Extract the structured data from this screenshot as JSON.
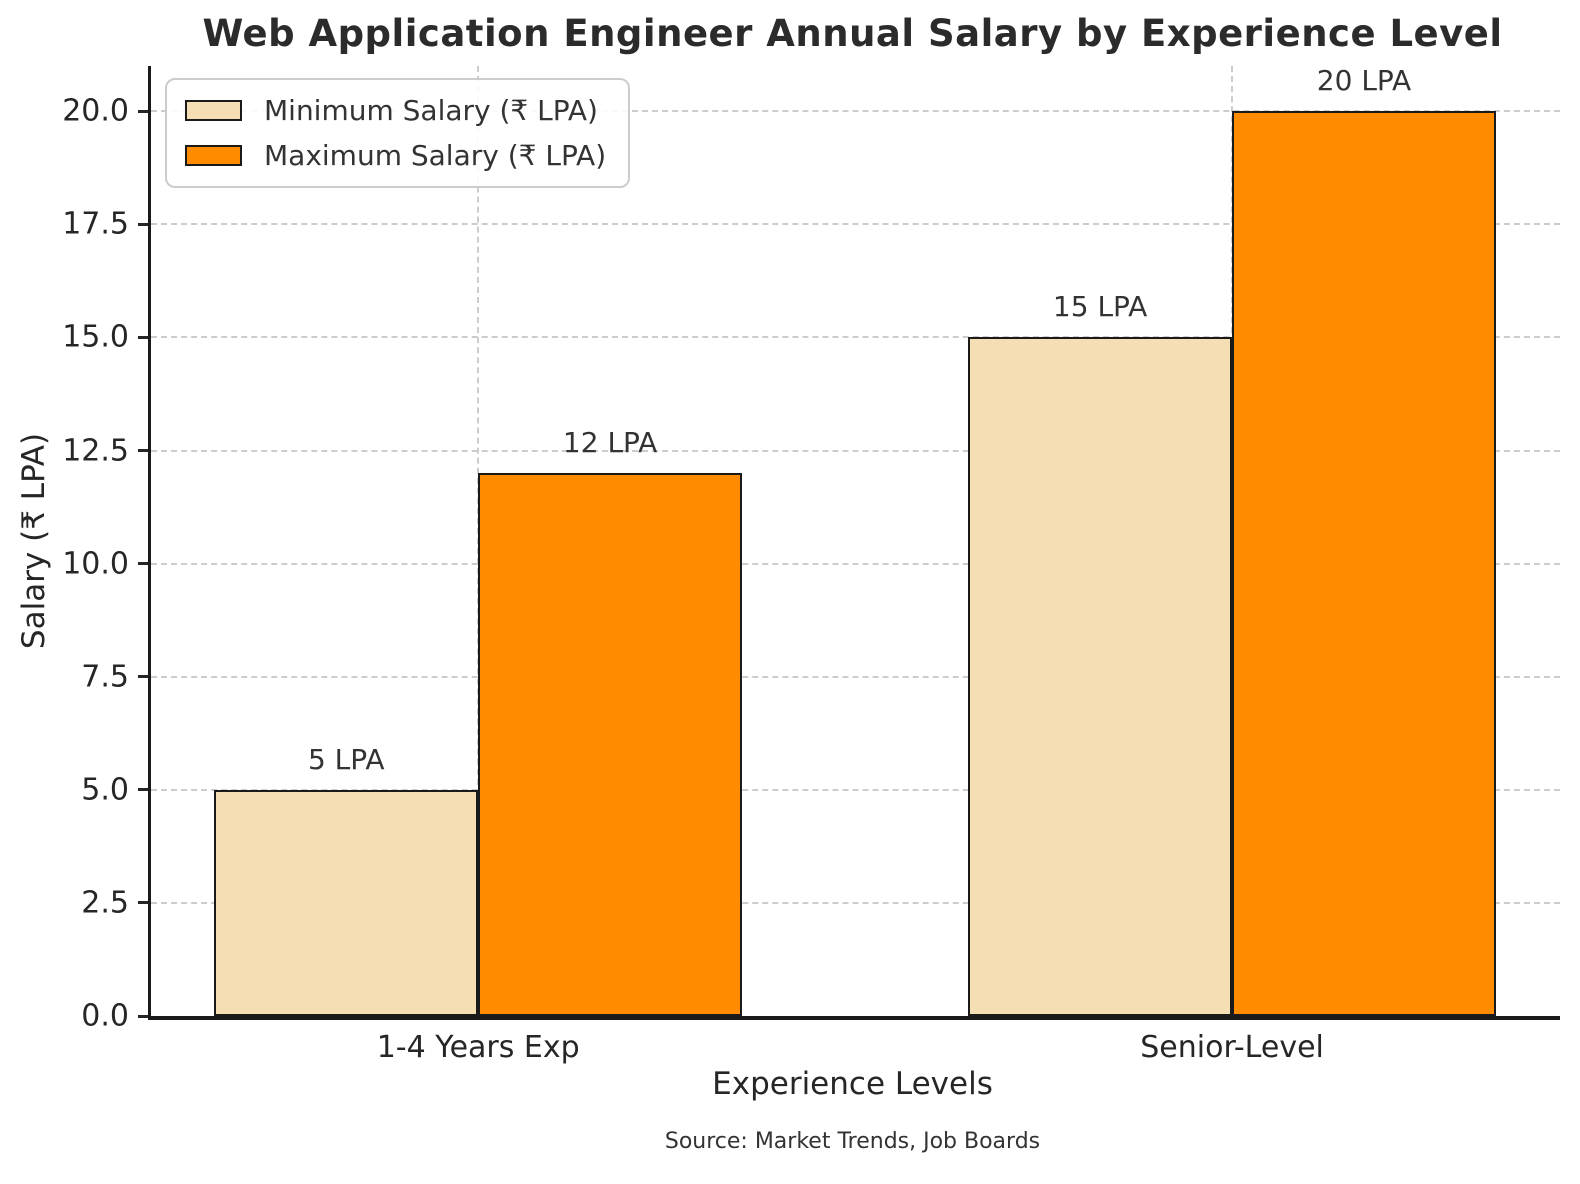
{
  "chart_data": {
    "type": "bar",
    "title": "Web Application Engineer Annual Salary by Experience Level",
    "xlabel": "Experience Levels",
    "ylabel": "Salary (₹ LPA)",
    "source_note": "Source: Market Trends, Job Boards",
    "categories": [
      "1-4 Years Exp",
      "Senior-Level"
    ],
    "series": [
      {
        "name": "Minimum Salary (₹ LPA)",
        "values": [
          5,
          15
        ],
        "value_labels": [
          "5 LPA",
          "15 LPA"
        ],
        "color": "#F5DEB3"
      },
      {
        "name": "Maximum Salary (₹ LPA)",
        "values": [
          12,
          20
        ],
        "value_labels": [
          "12 LPA",
          "20 LPA"
        ],
        "color": "#FF8C00"
      }
    ],
    "bar_width": 0.35,
    "bar_edge_color": "#1a1a1a",
    "xlim": [
      -0.434,
      1.435
    ],
    "ylim": [
      0,
      21
    ],
    "yticks": [
      0,
      2.5,
      5,
      7.5,
      10,
      12.5,
      15,
      17.5,
      20
    ],
    "ytick_labels": [
      "0.0",
      "2.5",
      "5.0",
      "7.5",
      "10.0",
      "12.5",
      "15.0",
      "17.5",
      "20.0"
    ],
    "grid": true,
    "grid_style": "dashed",
    "grid_color": "#cccccc",
    "legend_position": "upper left",
    "text_color": "#333333"
  }
}
